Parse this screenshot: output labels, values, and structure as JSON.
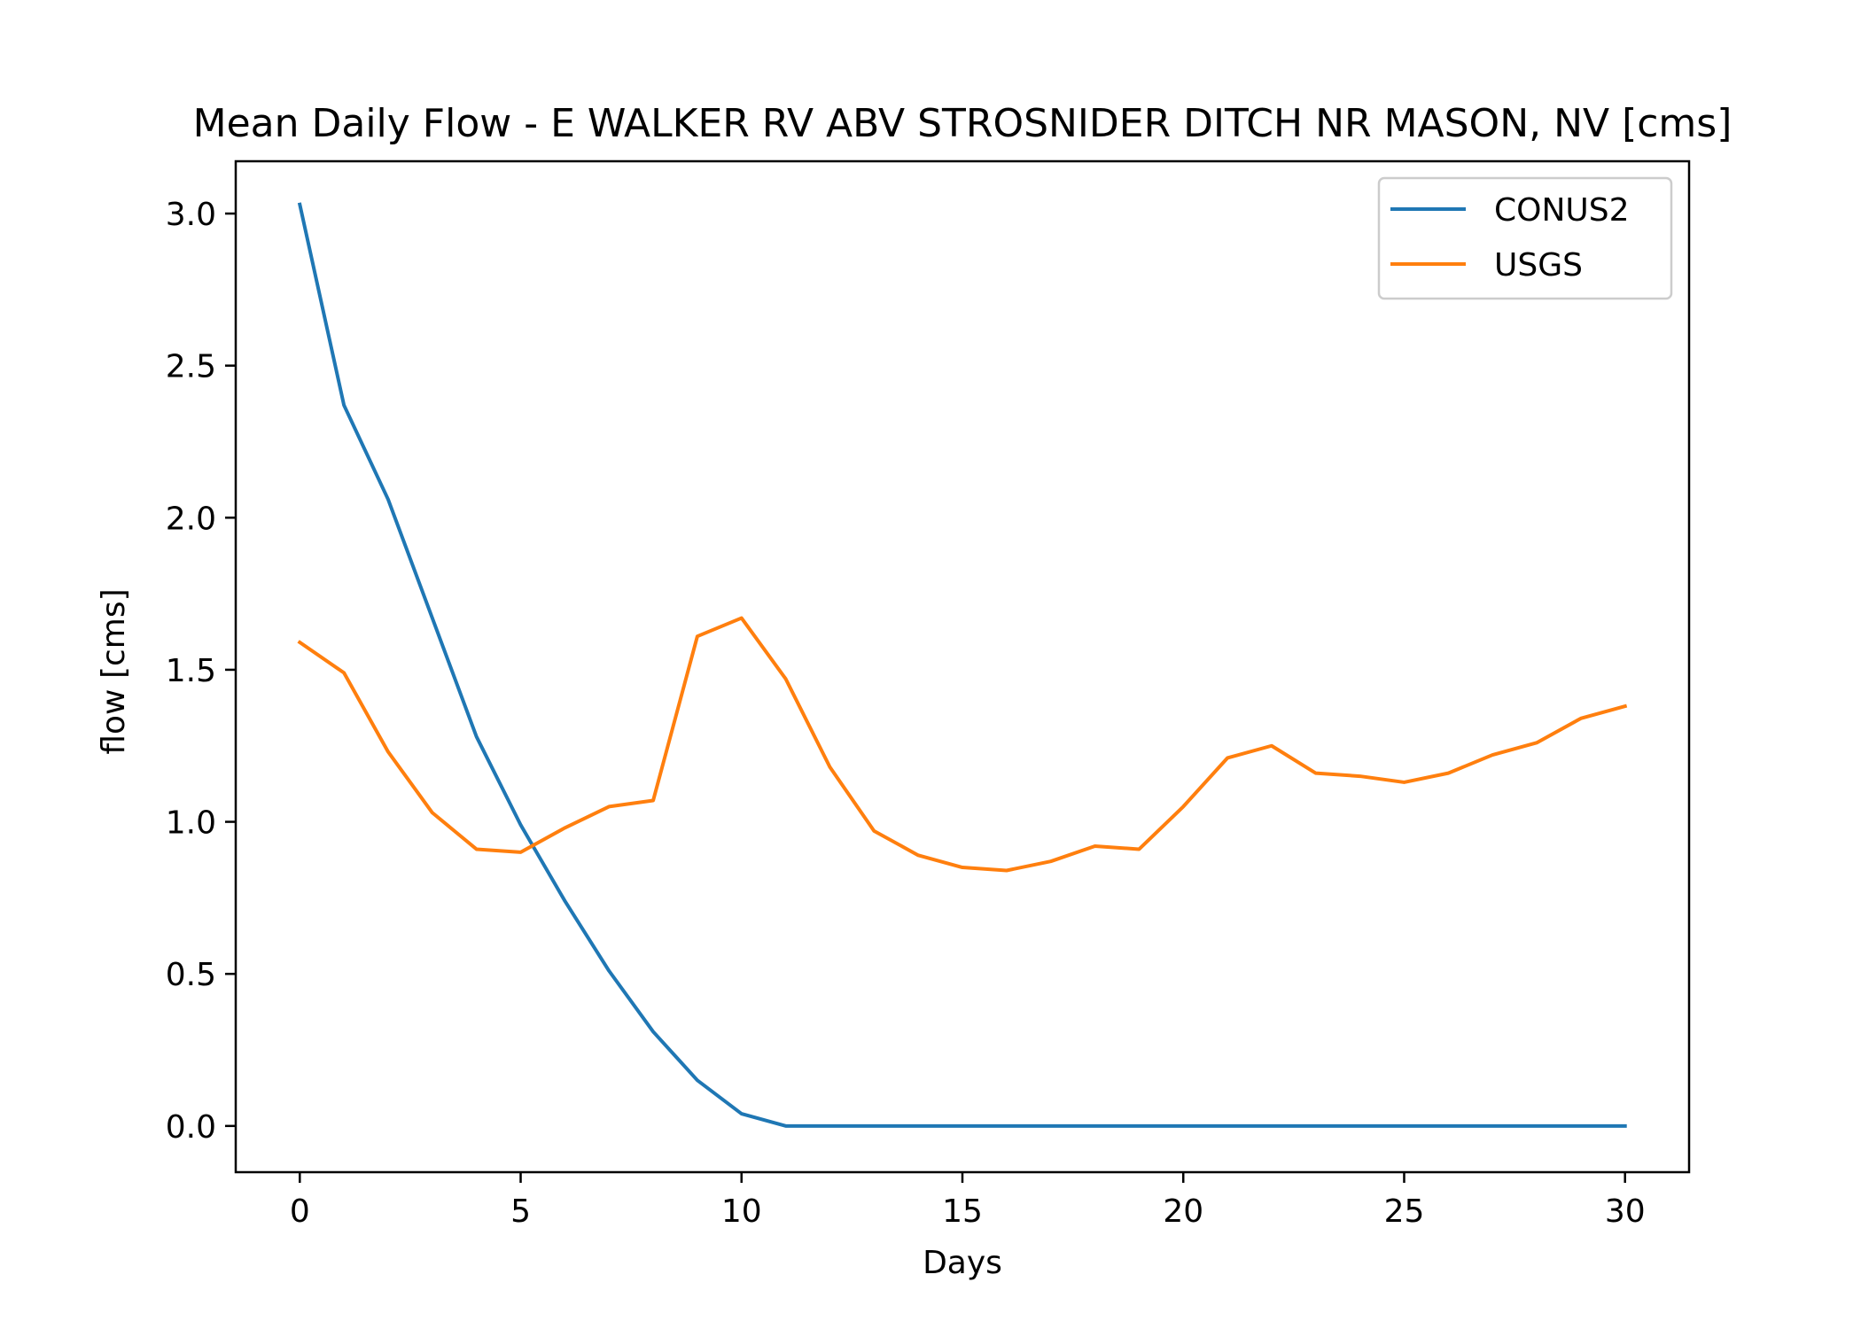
{
  "chart_data": {
    "type": "line",
    "title": "Mean Daily Flow - E WALKER RV ABV STROSNIDER DITCH NR MASON, NV [cms]",
    "xlabel": "Days",
    "ylabel": "flow [cms]",
    "xlim": [
      -1.45,
      31.45
    ],
    "ylim": [
      -0.152,
      3.172
    ],
    "xticks": [
      0,
      5,
      10,
      15,
      20,
      25,
      30
    ],
    "yticks": [
      0.0,
      0.5,
      1.0,
      1.5,
      2.0,
      2.5,
      3.0
    ],
    "xtick_labels": [
      "0",
      "5",
      "10",
      "15",
      "20",
      "25",
      "30"
    ],
    "ytick_labels": [
      "0.0",
      "0.5",
      "1.0",
      "1.5",
      "2.0",
      "2.5",
      "3.0"
    ],
    "grid": false,
    "legend_position": "top-right",
    "x": [
      0,
      1,
      2,
      3,
      4,
      5,
      6,
      7,
      8,
      9,
      10,
      11,
      12,
      13,
      14,
      15,
      16,
      17,
      18,
      19,
      20,
      21,
      22,
      23,
      24,
      25,
      26,
      27,
      28,
      29,
      30
    ],
    "series": [
      {
        "name": "CONUS2",
        "color": "#1f77b4",
        "values": [
          3.03,
          2.37,
          2.06,
          1.67,
          1.28,
          0.99,
          0.74,
          0.51,
          0.31,
          0.15,
          0.04,
          0.0,
          0.0,
          0.0,
          0.0,
          0.0,
          0.0,
          0.0,
          0.0,
          0.0,
          0.0,
          0.0,
          0.0,
          0.0,
          0.0,
          0.0,
          0.0,
          0.0,
          0.0,
          0.0,
          0.0
        ]
      },
      {
        "name": "USGS",
        "color": "#ff7f0e",
        "values": [
          1.59,
          1.49,
          1.23,
          1.03,
          0.91,
          0.9,
          0.98,
          1.05,
          1.07,
          1.61,
          1.67,
          1.47,
          1.18,
          0.97,
          0.89,
          0.85,
          0.84,
          0.87,
          0.92,
          0.91,
          1.05,
          1.21,
          1.25,
          1.16,
          1.15,
          1.13,
          1.16,
          1.22,
          1.26,
          1.34,
          1.38
        ]
      }
    ]
  }
}
